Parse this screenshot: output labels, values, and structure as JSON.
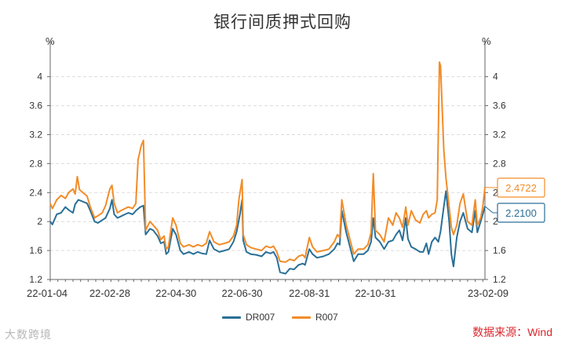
{
  "chart_data": {
    "type": "line",
    "title": "银行间质押式回购",
    "y_unit_left": "%",
    "y_unit_right": "%",
    "xlabel": "",
    "ylabel": "",
    "ylim": [
      1.2,
      4.3
    ],
    "yticks": [
      1.2,
      1.6,
      2,
      2.4,
      2.8,
      3.2,
      3.6,
      4
    ],
    "xlim": [
      "2022-01-04",
      "2023-02-09"
    ],
    "xticks": [
      "22-01-04",
      "22-02-28",
      "22-04-30",
      "22-06-30",
      "22-08-31",
      "22-10-31",
      "23-02-09"
    ],
    "grid": true,
    "legend_position": "bottom",
    "series": [
      {
        "name": "DR007",
        "color": "#2a6f97",
        "points": [
          [
            "2022-01-04",
            2.0
          ],
          [
            "2022-01-06",
            1.96
          ],
          [
            "2022-01-10",
            2.1
          ],
          [
            "2022-01-14",
            2.12
          ],
          [
            "2022-01-18",
            2.2
          ],
          [
            "2022-01-21",
            2.16
          ],
          [
            "2022-01-25",
            2.12
          ],
          [
            "2022-01-27",
            2.24
          ],
          [
            "2022-01-30",
            2.3
          ],
          [
            "2022-02-07",
            2.25
          ],
          [
            "2022-02-10",
            2.15
          ],
          [
            "2022-02-14",
            2.0
          ],
          [
            "2022-02-17",
            1.98
          ],
          [
            "2022-02-21",
            2.02
          ],
          [
            "2022-02-24",
            2.05
          ],
          [
            "2022-02-28",
            2.18
          ],
          [
            "2022-03-02",
            2.3
          ],
          [
            "2022-03-04",
            2.1
          ],
          [
            "2022-03-07",
            2.05
          ],
          [
            "2022-03-10",
            2.07
          ],
          [
            "2022-03-14",
            2.1
          ],
          [
            "2022-03-17",
            2.12
          ],
          [
            "2022-03-21",
            2.1
          ],
          [
            "2022-03-24",
            2.15
          ],
          [
            "2022-03-28",
            2.2
          ],
          [
            "2022-03-31",
            2.22
          ],
          [
            "2022-04-02",
            1.82
          ],
          [
            "2022-04-06",
            1.9
          ],
          [
            "2022-04-09",
            1.88
          ],
          [
            "2022-04-13",
            1.8
          ],
          [
            "2022-04-16",
            1.7
          ],
          [
            "2022-04-19",
            1.72
          ],
          [
            "2022-04-21",
            1.55
          ],
          [
            "2022-04-23",
            1.58
          ],
          [
            "2022-04-27",
            1.9
          ],
          [
            "2022-04-30",
            1.82
          ],
          [
            "2022-05-04",
            1.6
          ],
          [
            "2022-05-07",
            1.55
          ],
          [
            "2022-05-12",
            1.58
          ],
          [
            "2022-05-16",
            1.55
          ],
          [
            "2022-05-20",
            1.58
          ],
          [
            "2022-05-24",
            1.56
          ],
          [
            "2022-05-28",
            1.55
          ],
          [
            "2022-05-31",
            1.74
          ],
          [
            "2022-06-04",
            1.62
          ],
          [
            "2022-06-09",
            1.58
          ],
          [
            "2022-06-14",
            1.6
          ],
          [
            "2022-06-18",
            1.62
          ],
          [
            "2022-06-22",
            1.72
          ],
          [
            "2022-06-25",
            1.86
          ],
          [
            "2022-06-28",
            2.1
          ],
          [
            "2022-06-30",
            2.3
          ],
          [
            "2022-07-01",
            1.74
          ],
          [
            "2022-07-04",
            1.58
          ],
          [
            "2022-07-08",
            1.55
          ],
          [
            "2022-07-13",
            1.54
          ],
          [
            "2022-07-18",
            1.52
          ],
          [
            "2022-07-22",
            1.58
          ],
          [
            "2022-07-26",
            1.56
          ],
          [
            "2022-07-29",
            1.58
          ],
          [
            "2022-08-01",
            1.5
          ],
          [
            "2022-08-04",
            1.3
          ],
          [
            "2022-08-09",
            1.28
          ],
          [
            "2022-08-13",
            1.35
          ],
          [
            "2022-08-17",
            1.34
          ],
          [
            "2022-08-21",
            1.4
          ],
          [
            "2022-08-25",
            1.42
          ],
          [
            "2022-08-27",
            1.4
          ],
          [
            "2022-08-31",
            1.62
          ],
          [
            "2022-09-03",
            1.55
          ],
          [
            "2022-09-07",
            1.5
          ],
          [
            "2022-09-13",
            1.52
          ],
          [
            "2022-09-18",
            1.55
          ],
          [
            "2022-09-23",
            1.62
          ],
          [
            "2022-09-26",
            1.7
          ],
          [
            "2022-09-28",
            1.68
          ],
          [
            "2022-09-30",
            2.15
          ],
          [
            "2022-10-04",
            1.85
          ],
          [
            "2022-10-08",
            1.62
          ],
          [
            "2022-10-11",
            1.45
          ],
          [
            "2022-10-15",
            1.55
          ],
          [
            "2022-10-20",
            1.55
          ],
          [
            "2022-10-24",
            1.6
          ],
          [
            "2022-10-27",
            1.72
          ],
          [
            "2022-10-29",
            2.05
          ],
          [
            "2022-10-31",
            1.78
          ],
          [
            "2022-11-04",
            1.72
          ],
          [
            "2022-11-08",
            1.62
          ],
          [
            "2022-11-12",
            1.72
          ],
          [
            "2022-11-16",
            1.74
          ],
          [
            "2022-11-19",
            1.82
          ],
          [
            "2022-11-22",
            1.88
          ],
          [
            "2022-11-25",
            1.74
          ],
          [
            "2022-11-28",
            2.05
          ],
          [
            "2022-11-30",
            1.76
          ],
          [
            "2022-12-03",
            1.65
          ],
          [
            "2022-12-07",
            1.62
          ],
          [
            "2022-12-11",
            1.58
          ],
          [
            "2022-12-14",
            1.58
          ],
          [
            "2022-12-17",
            1.7
          ],
          [
            "2022-12-19",
            1.55
          ],
          [
            "2022-12-22",
            1.72
          ],
          [
            "2022-12-25",
            1.78
          ],
          [
            "2022-12-28",
            1.72
          ],
          [
            "2022-12-30",
            1.86
          ],
          [
            "2023-01-02",
            2.2
          ],
          [
            "2023-01-04",
            2.42
          ],
          [
            "2023-01-07",
            2.0
          ],
          [
            "2023-01-09",
            1.55
          ],
          [
            "2023-01-11",
            1.38
          ],
          [
            "2023-01-14",
            1.78
          ],
          [
            "2023-01-17",
            2.0
          ],
          [
            "2023-01-20",
            2.12
          ],
          [
            "2023-01-24",
            1.9
          ],
          [
            "2023-01-28",
            1.85
          ],
          [
            "2023-01-31",
            2.15
          ],
          [
            "2023-02-02",
            1.85
          ],
          [
            "2023-02-05",
            2.0
          ],
          [
            "2023-02-07",
            2.1
          ],
          [
            "2023-02-09",
            2.21
          ]
        ]
      },
      {
        "name": "R007",
        "color": "#f28c28",
        "points": [
          [
            "2022-01-04",
            2.25
          ],
          [
            "2022-01-06",
            2.18
          ],
          [
            "2022-01-10",
            2.3
          ],
          [
            "2022-01-14",
            2.36
          ],
          [
            "2022-01-18",
            2.32
          ],
          [
            "2022-01-21",
            2.4
          ],
          [
            "2022-01-25",
            2.45
          ],
          [
            "2022-01-27",
            2.38
          ],
          [
            "2022-01-29",
            2.62
          ],
          [
            "2022-01-31",
            2.44
          ],
          [
            "2022-02-07",
            2.35
          ],
          [
            "2022-02-10",
            2.2
          ],
          [
            "2022-02-14",
            2.05
          ],
          [
            "2022-02-17",
            2.08
          ],
          [
            "2022-02-21",
            2.12
          ],
          [
            "2022-02-24",
            2.22
          ],
          [
            "2022-02-28",
            2.45
          ],
          [
            "2022-03-02",
            2.5
          ],
          [
            "2022-03-04",
            2.25
          ],
          [
            "2022-03-07",
            2.12
          ],
          [
            "2022-03-10",
            2.15
          ],
          [
            "2022-03-14",
            2.18
          ],
          [
            "2022-03-17",
            2.2
          ],
          [
            "2022-03-21",
            2.18
          ],
          [
            "2022-03-24",
            2.25
          ],
          [
            "2022-03-26",
            2.85
          ],
          [
            "2022-03-29",
            3.05
          ],
          [
            "2022-03-31",
            3.12
          ],
          [
            "2022-04-02",
            1.88
          ],
          [
            "2022-04-06",
            2.0
          ],
          [
            "2022-04-09",
            1.95
          ],
          [
            "2022-04-13",
            1.88
          ],
          [
            "2022-04-16",
            1.75
          ],
          [
            "2022-04-19",
            1.8
          ],
          [
            "2022-04-21",
            1.62
          ],
          [
            "2022-04-23",
            1.65
          ],
          [
            "2022-04-27",
            2.05
          ],
          [
            "2022-04-30",
            1.95
          ],
          [
            "2022-05-04",
            1.7
          ],
          [
            "2022-05-07",
            1.65
          ],
          [
            "2022-05-12",
            1.68
          ],
          [
            "2022-05-16",
            1.65
          ],
          [
            "2022-05-20",
            1.68
          ],
          [
            "2022-05-24",
            1.66
          ],
          [
            "2022-05-28",
            1.7
          ],
          [
            "2022-05-31",
            1.86
          ],
          [
            "2022-06-04",
            1.72
          ],
          [
            "2022-06-09",
            1.68
          ],
          [
            "2022-06-14",
            1.7
          ],
          [
            "2022-06-18",
            1.72
          ],
          [
            "2022-06-22",
            1.8
          ],
          [
            "2022-06-25",
            1.95
          ],
          [
            "2022-06-27",
            2.3
          ],
          [
            "2022-06-30",
            2.58
          ],
          [
            "2022-07-01",
            1.82
          ],
          [
            "2022-07-04",
            1.68
          ],
          [
            "2022-07-08",
            1.64
          ],
          [
            "2022-07-13",
            1.62
          ],
          [
            "2022-07-18",
            1.6
          ],
          [
            "2022-07-22",
            1.66
          ],
          [
            "2022-07-26",
            1.64
          ],
          [
            "2022-07-29",
            1.66
          ],
          [
            "2022-08-01",
            1.58
          ],
          [
            "2022-08-04",
            1.45
          ],
          [
            "2022-08-09",
            1.44
          ],
          [
            "2022-08-13",
            1.48
          ],
          [
            "2022-08-17",
            1.46
          ],
          [
            "2022-08-21",
            1.52
          ],
          [
            "2022-08-25",
            1.54
          ],
          [
            "2022-08-27",
            1.5
          ],
          [
            "2022-08-31",
            1.78
          ],
          [
            "2022-09-03",
            1.65
          ],
          [
            "2022-09-07",
            1.58
          ],
          [
            "2022-09-13",
            1.6
          ],
          [
            "2022-09-18",
            1.62
          ],
          [
            "2022-09-23",
            1.72
          ],
          [
            "2022-09-26",
            1.82
          ],
          [
            "2022-09-28",
            1.78
          ],
          [
            "2022-09-30",
            2.3
          ],
          [
            "2022-10-04",
            1.95
          ],
          [
            "2022-10-08",
            1.72
          ],
          [
            "2022-10-11",
            1.55
          ],
          [
            "2022-10-15",
            1.62
          ],
          [
            "2022-10-20",
            1.62
          ],
          [
            "2022-10-24",
            1.68
          ],
          [
            "2022-10-27",
            1.85
          ],
          [
            "2022-10-29",
            2.66
          ],
          [
            "2022-10-31",
            1.88
          ],
          [
            "2022-11-04",
            1.82
          ],
          [
            "2022-11-08",
            1.72
          ],
          [
            "2022-11-12",
            2.05
          ],
          [
            "2022-11-16",
            1.95
          ],
          [
            "2022-11-19",
            2.12
          ],
          [
            "2022-11-22",
            2.05
          ],
          [
            "2022-11-25",
            1.92
          ],
          [
            "2022-11-28",
            2.2
          ],
          [
            "2022-11-30",
            1.95
          ],
          [
            "2022-12-03",
            2.15
          ],
          [
            "2022-12-07",
            2.02
          ],
          [
            "2022-12-11",
            1.98
          ],
          [
            "2022-12-14",
            2.1
          ],
          [
            "2022-12-17",
            2.15
          ],
          [
            "2022-12-19",
            2.05
          ],
          [
            "2022-12-22",
            2.1
          ],
          [
            "2022-12-25",
            2.12
          ],
          [
            "2022-12-27",
            2.3
          ],
          [
            "2022-12-29",
            4.2
          ],
          [
            "2022-12-30",
            4.15
          ],
          [
            "2023-01-02",
            3.0
          ],
          [
            "2023-01-04",
            2.6
          ],
          [
            "2023-01-07",
            2.2
          ],
          [
            "2023-01-09",
            1.92
          ],
          [
            "2023-01-11",
            1.82
          ],
          [
            "2023-01-14",
            1.95
          ],
          [
            "2023-01-17",
            2.25
          ],
          [
            "2023-01-20",
            2.38
          ],
          [
            "2023-01-24",
            2.0
          ],
          [
            "2023-01-28",
            1.95
          ],
          [
            "2023-01-31",
            2.3
          ],
          [
            "2023-02-02",
            1.95
          ],
          [
            "2023-02-05",
            2.05
          ],
          [
            "2023-02-07",
            2.2
          ],
          [
            "2023-02-09",
            2.4722
          ]
        ]
      }
    ],
    "end_labels": [
      {
        "series": "R007",
        "text": "2.4722",
        "color": "#f28c28"
      },
      {
        "series": "DR007",
        "text": "2.2100",
        "color": "#2a6f97"
      }
    ]
  },
  "source": "数据来源：Wind",
  "watermark": "大数跨境"
}
